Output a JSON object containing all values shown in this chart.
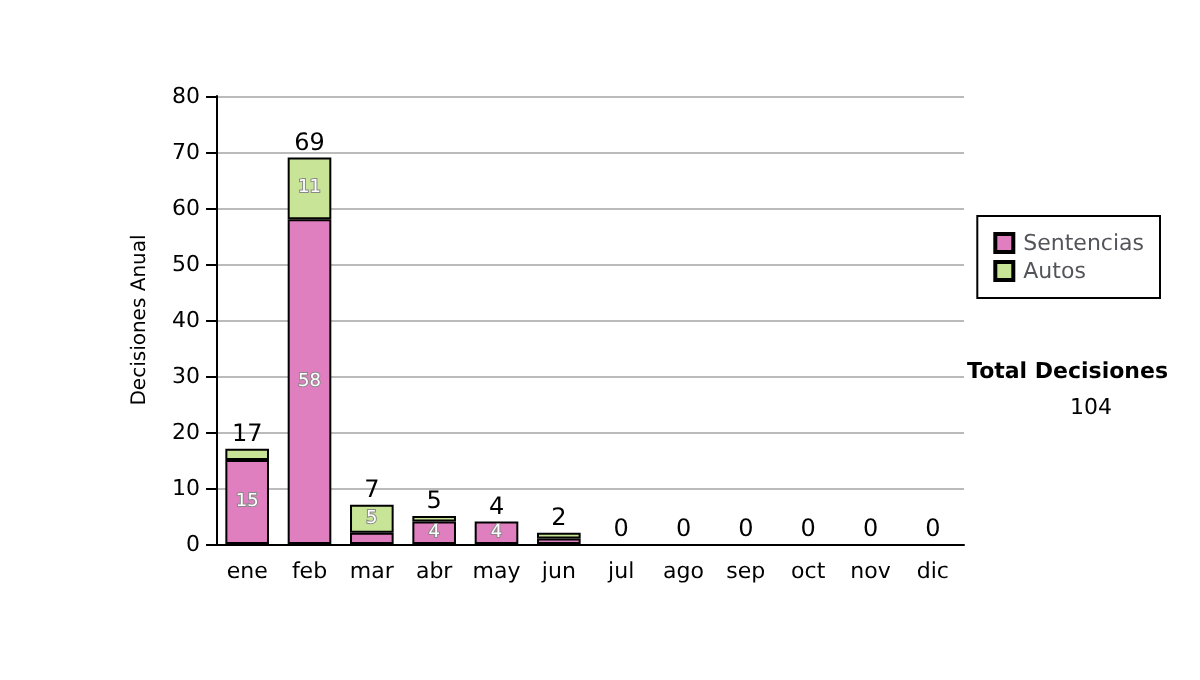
{
  "chart_data": {
    "type": "bar",
    "stacked": true,
    "ylabel": "Decisiones Anual",
    "categories": [
      "ene",
      "feb",
      "mar",
      "abr",
      "may",
      "jun",
      "jul",
      "ago",
      "sep",
      "oct",
      "nov",
      "dic"
    ],
    "series": [
      {
        "name": "Sentencias",
        "color": "#e07fc0",
        "values": [
          15,
          58,
          2,
          4,
          4,
          1,
          0,
          0,
          0,
          0,
          0,
          0
        ],
        "value_labels": [
          "15",
          "58",
          null,
          "4",
          "4",
          null,
          null,
          null,
          null,
          null,
          null,
          null
        ]
      },
      {
        "name": "Autos",
        "color": "#c8e496",
        "values": [
          2,
          11,
          5,
          1,
          0,
          1,
          0,
          0,
          0,
          0,
          0,
          0
        ],
        "value_labels": [
          null,
          "11",
          "5",
          null,
          null,
          null,
          null,
          null,
          null,
          null,
          null,
          null
        ]
      }
    ],
    "totals": [
      "17",
      "69",
      "7",
      "5",
      "4",
      "2",
      "0",
      "0",
      "0",
      "0",
      "0",
      "0"
    ],
    "ylim": [
      0,
      80
    ],
    "yticks": [
      0,
      10,
      20,
      30,
      40,
      50,
      60,
      70,
      80
    ],
    "grid": "y",
    "legend": "right",
    "annotations": [
      "Total Decisiones",
      "104"
    ]
  }
}
